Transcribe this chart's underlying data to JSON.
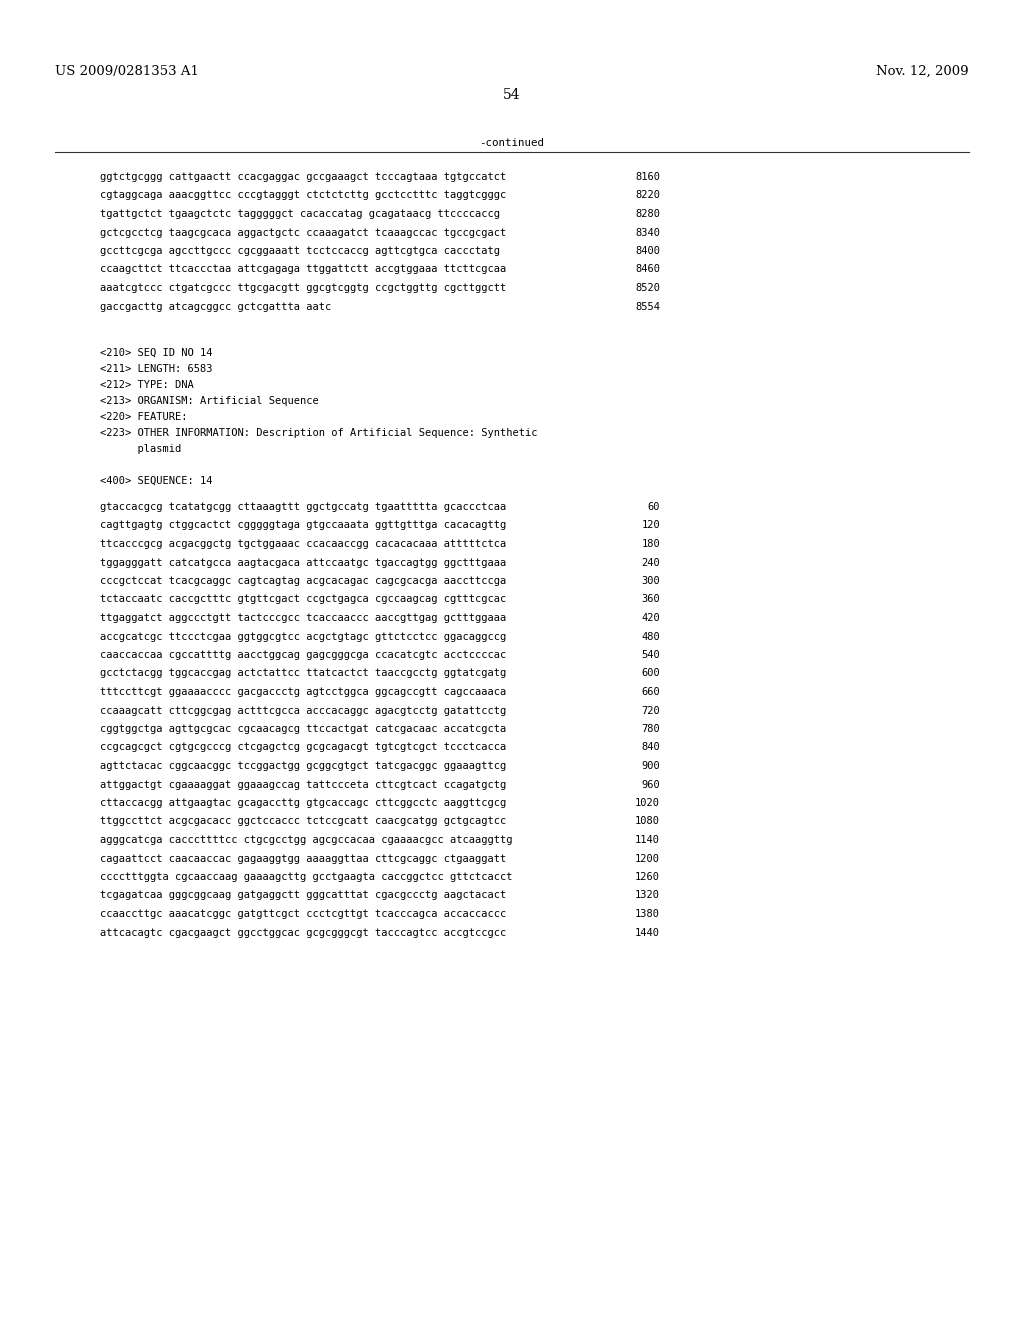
{
  "header_left": "US 2009/0281353 A1",
  "header_right": "Nov. 12, 2009",
  "page_number": "54",
  "continued_label": "-continued",
  "background_color": "#ffffff",
  "text_color": "#000000",
  "sequence_lines_top": [
    [
      "ggtctgcggg cattgaactt ccacgaggac gccgaaagct tcccagtaaa tgtgccatct",
      "8160"
    ],
    [
      "cgtaggcaga aaacggttcc cccgtagggt ctctctcttg gcctcctttc taggtcgggc",
      "8220"
    ],
    [
      "tgattgctct tgaagctctc tagggggct cacaccatag gcagataacg ttccccaccg",
      "8280"
    ],
    [
      "gctcgcctcg taagcgcaca aggactgctc ccaaagatct tcaaagccac tgccgcgact",
      "8340"
    ],
    [
      "gccttcgcga agccttgccc cgcggaaatt tcctccaccg agttcgtgca caccctatg",
      "8400"
    ],
    [
      "ccaagcttct ttcaccctaa attcgagaga ttggattctt accgtggaaa ttcttcgcaa",
      "8460"
    ],
    [
      "aaatcgtccc ctgatcgccc ttgcgacgtt ggcgtcggtg ccgctggttg cgcttggctt",
      "8520"
    ],
    [
      "gaccgacttg atcagcggcc gctcgattta aatc",
      "8554"
    ]
  ],
  "metadata_lines": [
    "<210> SEQ ID NO 14",
    "<211> LENGTH: 6583",
    "<212> TYPE: DNA",
    "<213> ORGANISM: Artificial Sequence",
    "<220> FEATURE:",
    "<223> OTHER INFORMATION: Description of Artificial Sequence: Synthetic",
    "      plasmid",
    "",
    "<400> SEQUENCE: 14"
  ],
  "sequence_lines_bottom": [
    [
      "gtaccacgcg tcatatgcgg cttaaagttt ggctgccatg tgaattttta gcaccctcaa",
      "60"
    ],
    [
      "cagttgagtg ctggcactct cgggggtaga gtgccaaata ggttgtttga cacacagttg",
      "120"
    ],
    [
      "ttcacccgcg acgacggctg tgctggaaac ccacaaccgg cacacacaaa atttttctca",
      "180"
    ],
    [
      "tggagggatt catcatgcca aagtacgaca attccaatgc tgaccagtgg ggctttgaaa",
      "240"
    ],
    [
      "cccgctccat tcacgcaggc cagtcagtag acgcacagac cagcgcacga aaccttccga",
      "300"
    ],
    [
      "tctaccaatc caccgctttc gtgttcgact ccgctgagca cgccaagcag cgtttcgcac",
      "360"
    ],
    [
      "ttgaggatct aggccctgtt tactcccgcc tcaccaaccc aaccgttgag gctttggaaa",
      "420"
    ],
    [
      "accgcatcgc ttccctcgaa ggtggcgtcc acgctgtagc gttctcctcc ggacaggccg",
      "480"
    ],
    [
      "caaccaccaa cgccattttg aacctggcag gagcgggcga ccacatcgtc acctccccac",
      "540"
    ],
    [
      "gcctctacgg tggcaccgag actctattcc ttatcactct taaccgcctg ggtatcgatg",
      "600"
    ],
    [
      "tttccttcgt ggaaaacccc gacgaccctg agtcctggca ggcagccgtt cagccaaaca",
      "660"
    ],
    [
      "ccaaagcatt cttcggcgag actttcgcca acccacaggc agacgtcctg gatattcctg",
      "720"
    ],
    [
      "cggtggctga agttgcgcac cgcaacagcg ttccactgat catcgacaac accatcgcta",
      "780"
    ],
    [
      "ccgcagcgct cgtgcgcccg ctcgagctcg gcgcagacgt tgtcgtcgct tccctcacca",
      "840"
    ],
    [
      "agttctacac cggcaacggc tccggactgg gcggcgtgct tatcgacggc ggaaagttcg",
      "900"
    ],
    [
      "attggactgt cgaaaaggat ggaaagccag tattccceta cttcgtcact ccagatgctg",
      "960"
    ],
    [
      "cttaccacgg attgaagtac gcagaccttg gtgcaccagc cttcggcctc aaggttcgcg",
      "1020"
    ],
    [
      "ttggccttct acgcgacacc ggctccaccc tctccgcatt caacgcatgg gctgcagtcc",
      "1080"
    ],
    [
      "agggcatcga cacccttttcc ctgcgcctgg agcgccacaa cgaaaacgcc atcaaggttg",
      "1140"
    ],
    [
      "cagaattcct caacaaccac gagaaggtgg aaaaggttaa cttcgcaggc ctgaaggatt",
      "1200"
    ],
    [
      "cccctttggta cgcaaccaag gaaaagcttg gcctgaagta caccggctcc gttctcacct",
      "1260"
    ],
    [
      "tcgagatcaa gggcggcaag gatgaggctt gggcatttat cgacgccctg aagctacact",
      "1320"
    ],
    [
      "ccaaccttgc aaacatcggc gatgttcgct ccctcgttgt tcacccagca accaccaccc",
      "1380"
    ],
    [
      "attcacagtc cgacgaagct ggcctggcac gcgcgggcgt tacccagtcc accgtccgcc",
      "1440"
    ]
  ]
}
